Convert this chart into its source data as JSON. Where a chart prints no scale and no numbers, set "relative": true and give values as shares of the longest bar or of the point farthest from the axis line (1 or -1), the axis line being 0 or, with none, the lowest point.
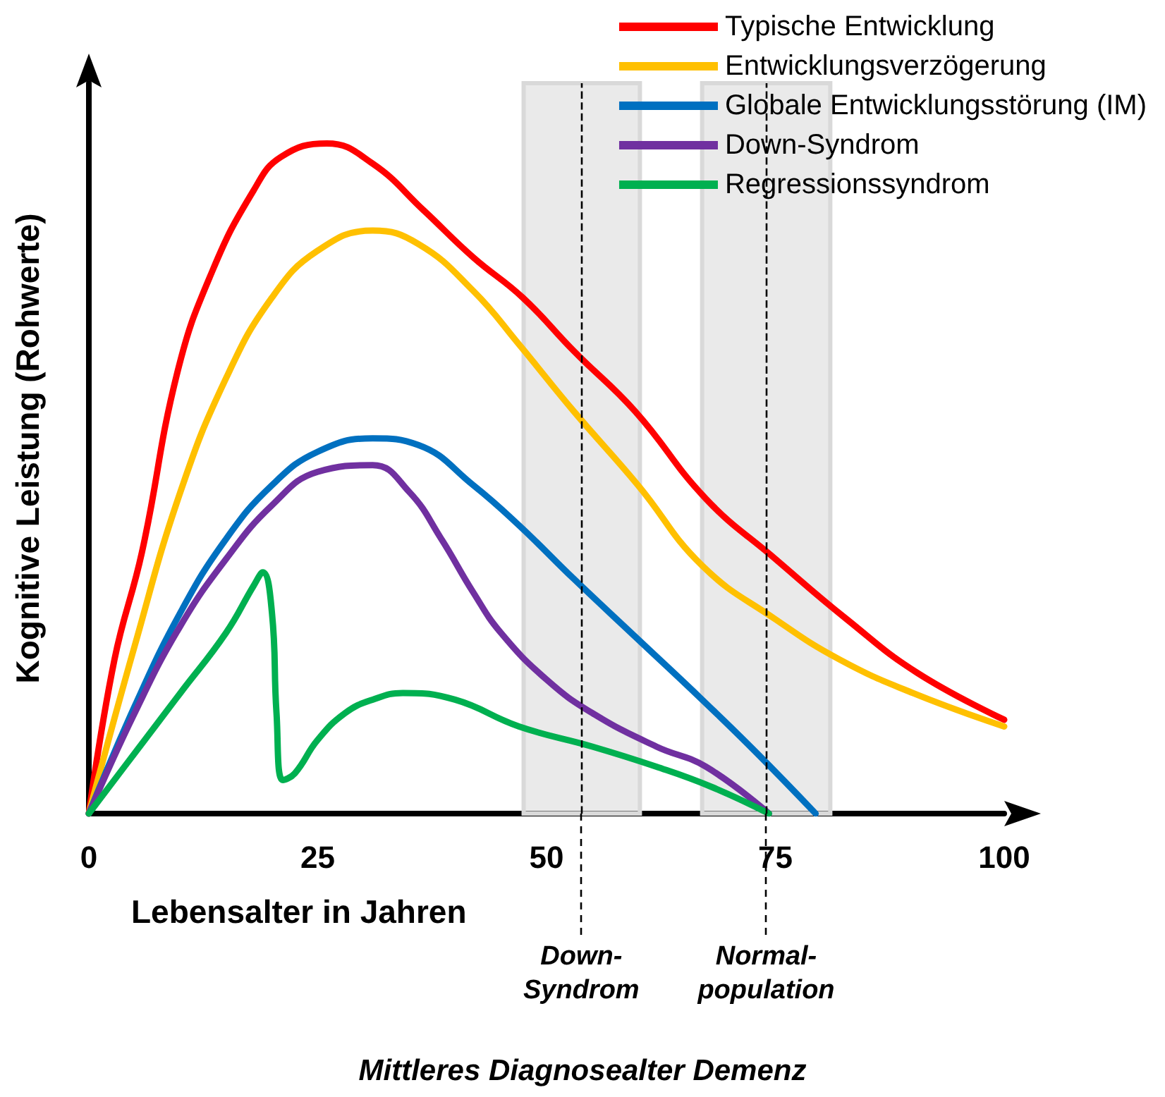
{
  "chart_data": {
    "type": "line",
    "relative": true,
    "xlabel": "Lebensalter in Jahren",
    "ylabel": "Kognitive Leistung (Rohwerte)",
    "xlim": [
      0,
      100
    ],
    "xticks": [
      0,
      25,
      50,
      75,
      100
    ],
    "legend": "top right",
    "grid": false,
    "marker": "none",
    "line_style": "solid",
    "annotations": [
      "Mittleres Diagnosealter Demenz"
    ],
    "bands": [
      {
        "axis": "x",
        "from": 47.5,
        "to": 60.2,
        "color": "#d9d9d9"
      },
      {
        "axis": "x",
        "from": 67,
        "to": 81,
        "color": "#d9d9d9"
      }
    ],
    "ref_lines": [
      {
        "axis": "x",
        "value": 53.8,
        "label": "Down-\nSyndrom",
        "line_style": "dashed",
        "color": "#000000"
      },
      {
        "axis": "x",
        "value": 74,
        "label": "Normal-\npopulation",
        "line_style": "dashed",
        "color": "#000000"
      }
    ],
    "series": [
      {
        "name": "Typische Entwicklung",
        "color": "#ff0000",
        "x": [
          0,
          2.8,
          5.8,
          9.7,
          13.5,
          18,
          21,
          26,
          31,
          36.6,
          42,
          47.4,
          53,
          59.7,
          67.4,
          75,
          82.8,
          90.5,
          100
        ],
        "values": [
          0,
          0.23,
          0.39,
          0.66,
          0.81,
          0.93,
          0.98,
          1.0,
          0.97,
          0.9,
          0.83,
          0.77,
          0.69,
          0.6,
          0.47,
          0.38,
          0.29,
          0.21,
          0.14
        ]
      },
      {
        "name": "Entwicklungsverzögerung",
        "color": "#ffc000",
        "x": [
          0,
          5,
          10,
          15,
          20,
          25,
          31,
          36,
          42,
          47,
          53,
          60,
          67,
          75,
          82,
          90,
          100
        ],
        "values": [
          0,
          0.25,
          0.48,
          0.65,
          0.77,
          0.84,
          0.87,
          0.85,
          0.78,
          0.7,
          0.6,
          0.49,
          0.37,
          0.29,
          0.23,
          0.18,
          0.13
        ]
      },
      {
        "name": "Globale Entwicklungsstörung (IM)",
        "color": "#0070c0",
        "x": [
          0,
          5,
          10,
          15,
          20,
          25,
          31,
          36,
          42,
          47,
          53,
          60,
          67,
          73,
          79.4
        ],
        "values": [
          0,
          0.16,
          0.3,
          0.41,
          0.49,
          0.54,
          0.56,
          0.55,
          0.49,
          0.43,
          0.35,
          0.26,
          0.17,
          0.09,
          0
        ]
      },
      {
        "name": "Down-Syndrom",
        "color": "#7030a0",
        "x": [
          0,
          5,
          10,
          15,
          20,
          25,
          31,
          35,
          38.5,
          42,
          45,
          50,
          55,
          62,
          67.4,
          74.3
        ],
        "values": [
          0,
          0.15,
          0.28,
          0.38,
          0.46,
          0.51,
          0.52,
          0.48,
          0.41,
          0.33,
          0.27,
          0.2,
          0.15,
          0.1,
          0.07,
          0
        ]
      },
      {
        "name": "Regressionssyndrom",
        "color": "#00b050",
        "x": [
          0,
          5,
          10,
          15,
          18,
          19,
          20,
          20.5,
          21.2,
          22.5,
          25,
          28,
          31,
          34.3,
          40,
          47,
          55,
          62,
          68,
          74.3
        ],
        "values": [
          0,
          0.09,
          0.18,
          0.27,
          0.34,
          0.36,
          0.3,
          0.15,
          0.05,
          0.06,
          0.11,
          0.15,
          0.17,
          0.18,
          0.17,
          0.13,
          0.1,
          0.07,
          0.04,
          0
        ]
      }
    ]
  }
}
